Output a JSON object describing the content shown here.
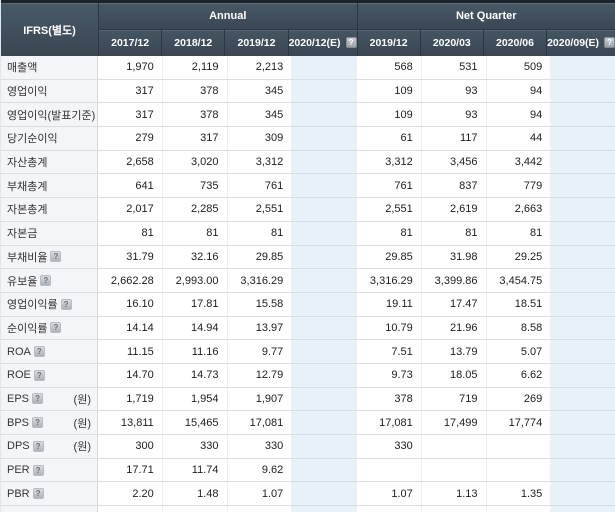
{
  "table": {
    "corner_label": "IFRS(별도)",
    "groups": [
      {
        "label": "Annual",
        "span": 4
      },
      {
        "label": "Net Quarter",
        "span": 4
      }
    ],
    "columns": [
      {
        "label": "2017/12",
        "estimate": false,
        "help_icon": false
      },
      {
        "label": "2018/12",
        "estimate": false,
        "help_icon": false
      },
      {
        "label": "2019/12",
        "estimate": false,
        "help_icon": false
      },
      {
        "label": "2020/12(E)",
        "estimate": true,
        "help_icon": true
      },
      {
        "label": "2019/12",
        "estimate": false,
        "help_icon": false
      },
      {
        "label": "2020/03",
        "estimate": false,
        "help_icon": false
      },
      {
        "label": "2020/06",
        "estimate": false,
        "help_icon": false
      },
      {
        "label": "2020/09(E)",
        "estimate": true,
        "help_icon": true
      }
    ],
    "help_icon_glyph": "?",
    "rows": [
      {
        "label": "매출액",
        "help_icon": false,
        "unit": "",
        "values": [
          "1,970",
          "2,119",
          "2,213",
          "",
          "568",
          "531",
          "509",
          ""
        ]
      },
      {
        "label": "영업이익",
        "help_icon": false,
        "unit": "",
        "values": [
          "317",
          "378",
          "345",
          "",
          "109",
          "93",
          "94",
          ""
        ]
      },
      {
        "label": "영업이익(발표기준)",
        "help_icon": false,
        "unit": "",
        "values": [
          "317",
          "378",
          "345",
          "",
          "109",
          "93",
          "94",
          ""
        ]
      },
      {
        "label": "당기순이익",
        "help_icon": false,
        "unit": "",
        "values": [
          "279",
          "317",
          "309",
          "",
          "61",
          "117",
          "44",
          ""
        ]
      },
      {
        "label": "자산총계",
        "help_icon": false,
        "unit": "",
        "values": [
          "2,658",
          "3,020",
          "3,312",
          "",
          "3,312",
          "3,456",
          "3,442",
          ""
        ]
      },
      {
        "label": "부채총계",
        "help_icon": false,
        "unit": "",
        "values": [
          "641",
          "735",
          "761",
          "",
          "761",
          "837",
          "779",
          ""
        ]
      },
      {
        "label": "자본총계",
        "help_icon": false,
        "unit": "",
        "values": [
          "2,017",
          "2,285",
          "2,551",
          "",
          "2,551",
          "2,619",
          "2,663",
          ""
        ]
      },
      {
        "label": "자본금",
        "help_icon": false,
        "unit": "",
        "values": [
          "81",
          "81",
          "81",
          "",
          "81",
          "81",
          "81",
          ""
        ]
      },
      {
        "label": "부채비율",
        "help_icon": true,
        "unit": "",
        "values": [
          "31.79",
          "32.16",
          "29.85",
          "",
          "29.85",
          "31.98",
          "29.25",
          ""
        ]
      },
      {
        "label": "유보율",
        "help_icon": true,
        "unit": "",
        "values": [
          "2,662.28",
          "2,993.00",
          "3,316.29",
          "",
          "3,316.29",
          "3,399.86",
          "3,454.75",
          ""
        ]
      },
      {
        "label": "영업이익률",
        "help_icon": true,
        "unit": "",
        "values": [
          "16.10",
          "17.81",
          "15.58",
          "",
          "19.11",
          "17.47",
          "18.51",
          ""
        ]
      },
      {
        "label": "순이익률",
        "help_icon": true,
        "unit": "",
        "values": [
          "14.14",
          "14.94",
          "13.97",
          "",
          "10.79",
          "21.96",
          "8.58",
          ""
        ]
      },
      {
        "label": "ROA",
        "help_icon": true,
        "unit": "",
        "values": [
          "11.15",
          "11.16",
          "9.77",
          "",
          "7.51",
          "13.79",
          "5.07",
          ""
        ]
      },
      {
        "label": "ROE",
        "help_icon": true,
        "unit": "",
        "values": [
          "14.70",
          "14.73",
          "12.79",
          "",
          "9.73",
          "18.05",
          "6.62",
          ""
        ]
      },
      {
        "label": "EPS",
        "help_icon": true,
        "unit": "(원)",
        "values": [
          "1,719",
          "1,954",
          "1,907",
          "",
          "378",
          "719",
          "269",
          ""
        ]
      },
      {
        "label": "BPS",
        "help_icon": true,
        "unit": "(원)",
        "values": [
          "13,811",
          "15,465",
          "17,081",
          "",
          "17,081",
          "17,499",
          "17,774",
          ""
        ]
      },
      {
        "label": "DPS",
        "help_icon": true,
        "unit": "(원)",
        "values": [
          "300",
          "330",
          "330",
          "",
          "330",
          "",
          "",
          ""
        ]
      },
      {
        "label": "PER",
        "help_icon": true,
        "unit": "",
        "values": [
          "17.71",
          "11.74",
          "9.62",
          "",
          "",
          "",
          "",
          ""
        ]
      },
      {
        "label": "PBR",
        "help_icon": true,
        "unit": "",
        "values": [
          "2.20",
          "1.48",
          "1.07",
          "",
          "1.07",
          "1.13",
          "1.35",
          ""
        ]
      }
    ],
    "colors": {
      "header_bg": "#3d4c59",
      "header_text": "#ffffff",
      "label_col_bg": "#f4f5f8",
      "estimate_col_bg": "#e6f1f8",
      "row_border": "#dadde2"
    }
  }
}
